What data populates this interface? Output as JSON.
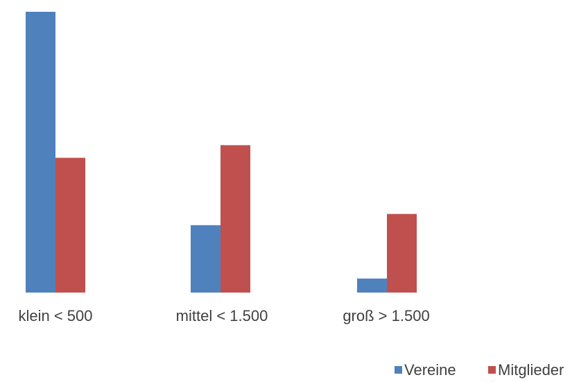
{
  "chart_data": {
    "type": "bar",
    "categories": [
      "klein < 500",
      "mittel < 1.500",
      "groß > 1.500"
    ],
    "series": [
      {
        "name": "Vereine",
        "color": "#4f81bd",
        "values": [
          100,
          24,
          5
        ]
      },
      {
        "name": "Mitglieder",
        "color": "#c0504d",
        "values": [
          48,
          52.5,
          28
        ]
      }
    ],
    "ylim": [
      0,
      100
    ],
    "grid": false,
    "legend_position": "bottom-right",
    "title": "",
    "xlabel": "",
    "ylabel": ""
  }
}
